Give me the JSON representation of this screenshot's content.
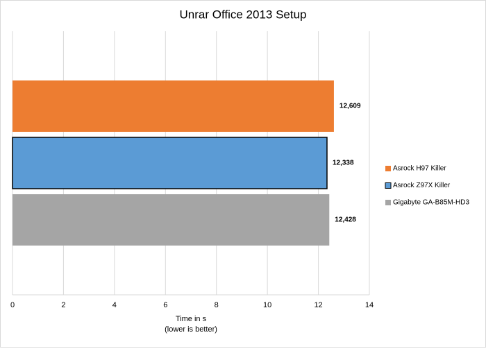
{
  "chart_data": {
    "type": "bar",
    "orientation": "horizontal",
    "title": "Unrar Office 2013 Setup",
    "x_label": [
      "Time in s",
      "(lower is better)"
    ],
    "categories": [
      null
    ],
    "series": [
      {
        "name": "Asrock H97 Killer",
        "color": "#ed7d31",
        "values": [
          12.609
        ],
        "value_labels": [
          "12,609"
        ]
      },
      {
        "name": "Asrock Z97X Killer",
        "color": "#5b9bd5",
        "stroke": "#000000",
        "values": [
          12.338
        ],
        "value_labels": [
          "12,338"
        ]
      },
      {
        "name": "Gigabyte GA-B85M-HD3",
        "color": "#a5a5a5",
        "values": [
          12.428
        ],
        "value_labels": [
          "12,428"
        ]
      }
    ],
    "xlim": [
      0,
      14
    ],
    "xticks": [
      0,
      2,
      4,
      6,
      8,
      10,
      12,
      14
    ],
    "grid": true,
    "legend": "right"
  }
}
